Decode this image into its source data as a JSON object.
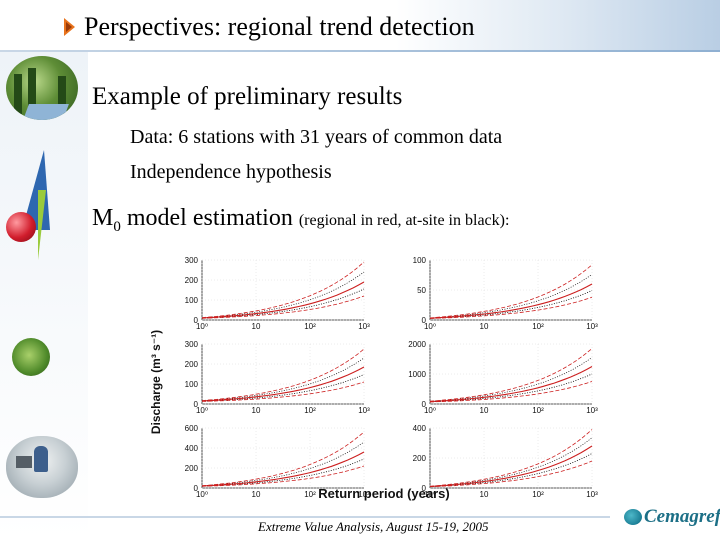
{
  "slide": {
    "title": "Perspectives: regional trend detection",
    "heading1": "Example of preliminary results",
    "bullets": [
      "Data: 6 stations with 31 years of common data",
      "Independence hypothesis"
    ],
    "heading2_main": "M",
    "heading2_sub": "0",
    "heading2_text": " model estimation ",
    "heading2_note": "(regional in red, at-site in black):",
    "footer": "Extreme Value Analysis, August 15-19, 2005",
    "logo_text": "Cemagref"
  },
  "colors": {
    "regional": "#cc1f1f",
    "at_site": "#000000",
    "title_arrow": "#e8731c",
    "logo": "#1c6f86"
  },
  "chart_data": {
    "type": "line",
    "layout": "3x2 grid of panels",
    "ylabel": "Discharge (m³ s⁻¹)",
    "xlabel": "Return period (years)",
    "x_scale": "log",
    "x_ticks": [
      "10⁰",
      "10",
      "10²",
      "10³"
    ],
    "panels": [
      {
        "row": 1,
        "col": 1,
        "ylim": [
          0,
          300
        ],
        "yticks": [
          "0",
          "100",
          "200",
          "300"
        ],
        "regional_T1": 10,
        "regional_T1000": 190,
        "upper_T1000": 290,
        "lower_T1000": 120
      },
      {
        "row": 1,
        "col": 2,
        "ylim": [
          0,
          100
        ],
        "yticks": [
          "0",
          "50",
          "100"
        ],
        "regional_T1": 3,
        "regional_T1000": 60,
        "upper_T1000": 92,
        "lower_T1000": 38
      },
      {
        "row": 2,
        "col": 1,
        "ylim": [
          0,
          300
        ],
        "yticks": [
          "0",
          "100",
          "200",
          "300"
        ],
        "regional_T1": 15,
        "regional_T1000": 185,
        "upper_T1000": 275,
        "lower_T1000": 110
      },
      {
        "row": 2,
        "col": 2,
        "ylim": [
          0,
          2000
        ],
        "yticks": [
          "0",
          "1000",
          "2000"
        ],
        "regional_T1": 80,
        "regional_T1000": 1250,
        "upper_T1000": 1850,
        "lower_T1000": 750
      },
      {
        "row": 3,
        "col": 1,
        "ylim": [
          0,
          600
        ],
        "yticks": [
          "0",
          "200",
          "400",
          "600"
        ],
        "regional_T1": 20,
        "regional_T1000": 360,
        "upper_T1000": 560,
        "lower_T1000": 220
      },
      {
        "row": 3,
        "col": 2,
        "ylim": [
          0,
          400
        ],
        "yticks": [
          "0",
          "200",
          "400"
        ],
        "regional_T1": 10,
        "regional_T1000": 280,
        "upper_T1000": 390,
        "lower_T1000": 180
      }
    ]
  }
}
